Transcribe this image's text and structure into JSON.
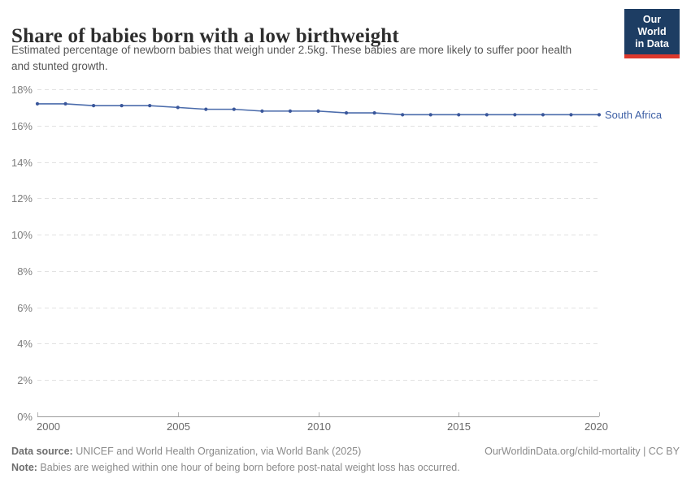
{
  "header": {
    "title": "Share of babies born with a low birthweight",
    "subtitle": "Estimated percentage of newborn babies that weigh under 2.5kg. These babies are more likely to suffer poor health and stunted growth.",
    "logo": {
      "line1": "Our World",
      "line2": "in Data"
    }
  },
  "chart_data": {
    "type": "line",
    "title": "Share of babies born with a low birthweight",
    "xlabel": "",
    "ylabel": "",
    "xlim": [
      2000,
      2020
    ],
    "ylim": [
      0,
      18
    ],
    "grid": "horizontal-dashed",
    "legend_position": "line-end-label",
    "x_ticks": [
      2000,
      2005,
      2010,
      2015,
      2020
    ],
    "x_tick_labels": [
      "2000",
      "2005",
      "2010",
      "2015",
      "2020"
    ],
    "y_ticks": [
      0,
      2,
      4,
      6,
      8,
      10,
      12,
      14,
      16,
      18
    ],
    "y_tick_labels": [
      "0%",
      "2%",
      "4%",
      "6%",
      "8%",
      "10%",
      "12%",
      "14%",
      "16%",
      "18%"
    ],
    "series": [
      {
        "name": "South Africa",
        "x": [
          2000,
          2001,
          2002,
          2003,
          2004,
          2005,
          2006,
          2007,
          2008,
          2009,
          2010,
          2011,
          2012,
          2013,
          2014,
          2015,
          2016,
          2017,
          2018,
          2019,
          2020
        ],
        "values": [
          17.2,
          17.2,
          17.1,
          17.1,
          17.1,
          17.0,
          16.9,
          16.9,
          16.8,
          16.8,
          16.8,
          16.7,
          16.7,
          16.6,
          16.6,
          16.6,
          16.6,
          16.6,
          16.6,
          16.6,
          16.6
        ]
      }
    ]
  },
  "colors": {
    "line": "#4a6bab",
    "point": "#3a579b",
    "series_label": "#3d5fa5",
    "gridline": "#e2e2e2",
    "axis": "#9b9b9b",
    "tick": "#b3b3b3",
    "y_tick_label": "#7d7d7d",
    "x_tick_label": "#696969",
    "logo_bg": "#1d3d63",
    "logo_stripe": "#dc382c",
    "title": "#2d2d2d",
    "subtitle": "#565656",
    "footer": "#8a8a8a"
  },
  "footer": {
    "data_source_label": "Data source:",
    "data_source_text": " UNICEF and World Health Organization, via World Bank (2025)",
    "note_label": "Note:",
    "note_text": " Babies are weighed within one hour of being born before post-natal weight loss has occurred.",
    "link": "OurWorldinData.org/child-mortality | CC BY"
  }
}
